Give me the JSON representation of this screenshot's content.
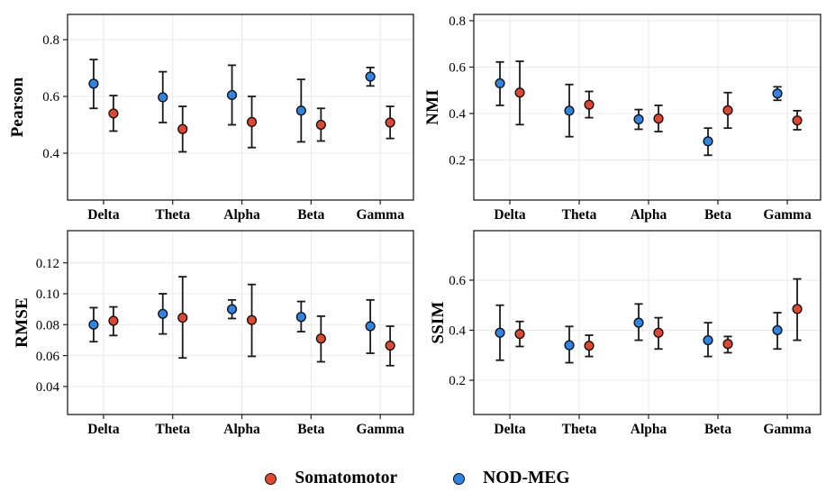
{
  "figure": {
    "background": "#ffffff",
    "text_color": "#000000",
    "grid_color": "#e8e8e8",
    "spine_color": "#1f1f1f",
    "errorbar_color": "#1a1a1a",
    "legend": {
      "position": "bottom-center",
      "items": [
        {
          "label": "Somatomotor",
          "color": "#E2462E"
        },
        {
          "label": "NOD-MEG",
          "color": "#2D85E8"
        }
      ]
    }
  },
  "chart_data": [
    {
      "type": "scatter",
      "subtype": "point-with-errorbars",
      "ylabel": "Pearson",
      "categories": [
        "Delta",
        "Theta",
        "Alpha",
        "Beta",
        "Gamma"
      ],
      "ylim": [
        0.235,
        0.889
      ],
      "yticks": [
        0.4,
        0.6,
        0.8
      ],
      "ytick_labels": [
        "0.4",
        "0.6",
        "0.8"
      ],
      "grid": true,
      "series": [
        {
          "name": "NOD-MEG",
          "color": "#2D85E8",
          "side": "left",
          "values": [
            0.645,
            0.597,
            0.605,
            0.55,
            0.67
          ],
          "lower": [
            0.558,
            0.508,
            0.5,
            0.44,
            0.637
          ],
          "upper": [
            0.73,
            0.687,
            0.71,
            0.66,
            0.702
          ]
        },
        {
          "name": "Somatomotor",
          "color": "#E2462E",
          "side": "right",
          "values": [
            0.54,
            0.485,
            0.51,
            0.5,
            0.508
          ],
          "lower": [
            0.478,
            0.405,
            0.42,
            0.443,
            0.452
          ],
          "upper": [
            0.603,
            0.565,
            0.6,
            0.558,
            0.565
          ]
        }
      ]
    },
    {
      "type": "scatter",
      "subtype": "point-with-errorbars",
      "ylabel": "NMI",
      "categories": [
        "Delta",
        "Theta",
        "Alpha",
        "Beta",
        "Gamma"
      ],
      "ylim": [
        0.027,
        0.827
      ],
      "yticks": [
        0.2,
        0.4,
        0.6,
        0.8
      ],
      "ytick_labels": [
        "0.2",
        "0.4",
        "0.6",
        "0.8"
      ],
      "grid": true,
      "series": [
        {
          "name": "NOD-MEG",
          "color": "#2D85E8",
          "side": "left",
          "values": [
            0.53,
            0.412,
            0.375,
            0.28,
            0.486
          ],
          "lower": [
            0.435,
            0.3,
            0.332,
            0.22,
            0.457
          ],
          "upper": [
            0.622,
            0.525,
            0.417,
            0.337,
            0.515
          ]
        },
        {
          "name": "Somatomotor",
          "color": "#E2462E",
          "side": "right",
          "values": [
            0.49,
            0.438,
            0.378,
            0.414,
            0.37
          ],
          "lower": [
            0.352,
            0.382,
            0.322,
            0.337,
            0.33
          ],
          "upper": [
            0.625,
            0.495,
            0.435,
            0.49,
            0.412
          ]
        }
      ]
    },
    {
      "type": "scatter",
      "subtype": "point-with-errorbars",
      "ylabel": "RMSE",
      "categories": [
        "Delta",
        "Theta",
        "Alpha",
        "Beta",
        "Gamma"
      ],
      "ylim": [
        0.0219,
        0.1408
      ],
      "yticks": [
        0.04,
        0.06,
        0.08,
        0.1,
        0.12
      ],
      "ytick_labels": [
        "0.04",
        "0.06",
        "0.08",
        "0.10",
        "0.12"
      ],
      "grid": true,
      "series": [
        {
          "name": "NOD-MEG",
          "color": "#2D85E8",
          "side": "left",
          "values": [
            0.08,
            0.087,
            0.09,
            0.085,
            0.079
          ],
          "lower": [
            0.069,
            0.074,
            0.084,
            0.0755,
            0.0615
          ],
          "upper": [
            0.091,
            0.1,
            0.096,
            0.095,
            0.096
          ]
        },
        {
          "name": "Somatomotor",
          "color": "#E2462E",
          "side": "right",
          "values": [
            0.0825,
            0.0845,
            0.083,
            0.071,
            0.0665
          ],
          "lower": [
            0.073,
            0.0585,
            0.0595,
            0.056,
            0.0535
          ],
          "upper": [
            0.0915,
            0.111,
            0.106,
            0.0855,
            0.079
          ]
        }
      ]
    },
    {
      "type": "scatter",
      "subtype": "point-with-errorbars",
      "ylabel": "SSIM",
      "categories": [
        "Delta",
        "Theta",
        "Alpha",
        "Beta",
        "Gamma"
      ],
      "ylim": [
        0.063,
        0.798
      ],
      "yticks": [
        0.2,
        0.4,
        0.6
      ],
      "ytick_labels": [
        "0.2",
        "0.4",
        "0.6"
      ],
      "grid": true,
      "series": [
        {
          "name": "NOD-MEG",
          "color": "#2D85E8",
          "side": "left",
          "values": [
            0.39,
            0.34,
            0.43,
            0.36,
            0.4
          ],
          "lower": [
            0.28,
            0.27,
            0.36,
            0.295,
            0.325
          ],
          "upper": [
            0.5,
            0.415,
            0.505,
            0.43,
            0.47
          ]
        },
        {
          "name": "Somatomotor",
          "color": "#E2462E",
          "side": "right",
          "values": [
            0.385,
            0.338,
            0.39,
            0.345,
            0.485
          ],
          "lower": [
            0.335,
            0.295,
            0.325,
            0.31,
            0.36
          ],
          "upper": [
            0.435,
            0.38,
            0.45,
            0.375,
            0.605
          ]
        }
      ]
    }
  ]
}
